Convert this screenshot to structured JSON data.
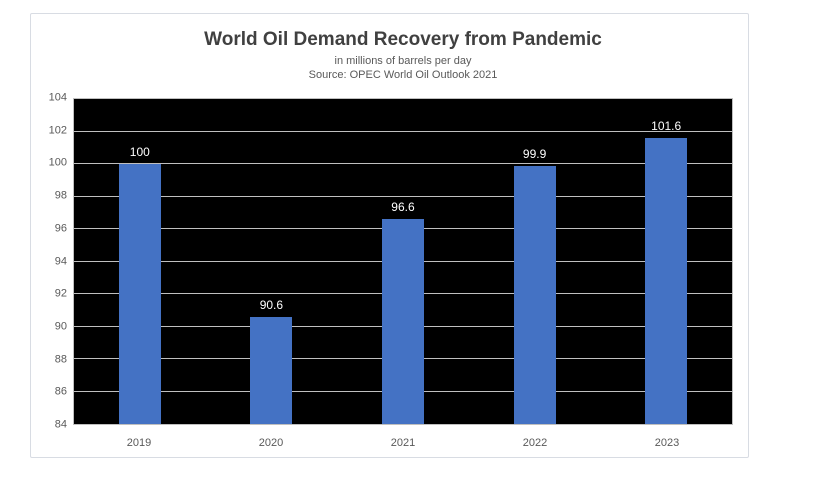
{
  "chart_data": {
    "type": "bar",
    "title": "World Oil Demand Recovery from Pandemic",
    "subtitle": "in millions of barrels per day",
    "source": "Source: OPEC World Oil Outlook 2021",
    "categories": [
      "2019",
      "2020",
      "2021",
      "2022",
      "2023"
    ],
    "values": [
      100,
      90.6,
      96.6,
      99.9,
      101.6
    ],
    "value_labels": [
      "100",
      "90.6",
      "96.6",
      "99.9",
      "101.6"
    ],
    "xlabel": "",
    "ylabel": "",
    "ylim": [
      84,
      104
    ],
    "ytick_step": 2,
    "grid": true,
    "legend": false,
    "colors": {
      "bar": "#4472C4",
      "plot_background": "#000000",
      "gridline": "#bfbfbf",
      "data_label": "#ffffff",
      "axis_text": "#595959",
      "title_text": "#404040",
      "frame_border": "#d8dce3"
    }
  }
}
